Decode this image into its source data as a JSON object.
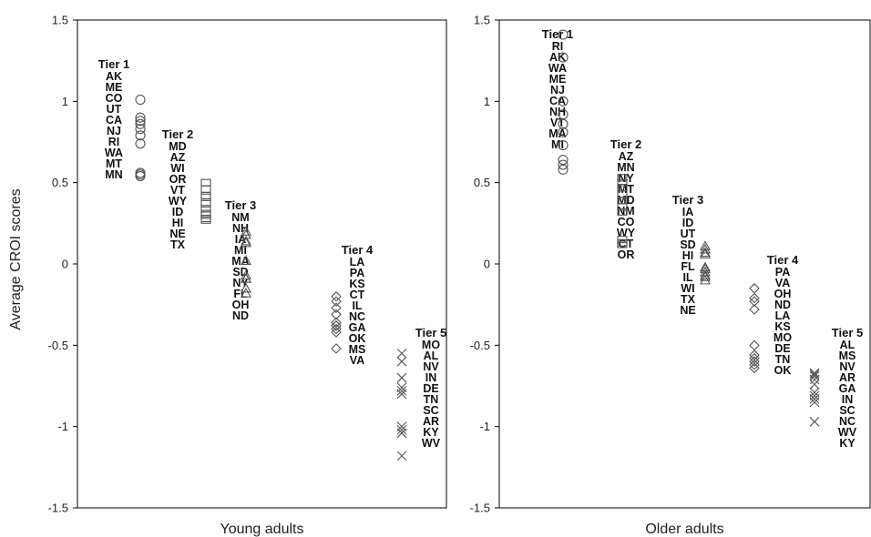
{
  "chart_data": [
    {
      "type": "scatter",
      "xlabel": "Young adults",
      "ylabel": "Average CROI scores",
      "ylim": [
        -1.5,
        1.5
      ],
      "yticks": [
        "1.5",
        "1",
        "0.5",
        "0",
        "-0.5",
        "-1",
        "-1.5"
      ],
      "tiers": [
        {
          "title": "Tier 1",
          "marker": "circle",
          "states": [
            "AK",
            "ME",
            "CO",
            "UT",
            "CA",
            "NJ",
            "RI",
            "WA",
            "MT",
            "MN"
          ],
          "values": [
            1.01,
            0.9,
            0.88,
            0.86,
            0.83,
            0.79,
            0.74,
            0.56,
            0.55,
            0.54
          ]
        },
        {
          "title": "Tier 2",
          "marker": "square",
          "states": [
            "MD",
            "AZ",
            "WI",
            "OR",
            "VT",
            "WY",
            "ID",
            "HI",
            "NE",
            "TX"
          ],
          "values": [
            0.5,
            0.46,
            0.42,
            0.41,
            0.37,
            0.34,
            0.31,
            0.3,
            0.28,
            0.27
          ]
        },
        {
          "title": "Tier 3",
          "marker": "triangle",
          "states": [
            "NM",
            "NH",
            "IA",
            "MI",
            "MA",
            "SD",
            "NY",
            "FL",
            "OH",
            "ND"
          ],
          "values": [
            0.2,
            0.18,
            0.14,
            0.13,
            0.02,
            -0.07,
            -0.09,
            -0.09,
            -0.15,
            -0.18
          ]
        },
        {
          "title": "Tier 4",
          "marker": "diamond",
          "states": [
            "LA",
            "PA",
            "KS",
            "CT",
            "IL",
            "NC",
            "GA",
            "OK",
            "MS",
            "VA"
          ],
          "values": [
            -0.2,
            -0.23,
            -0.27,
            -0.31,
            -0.36,
            -0.38,
            -0.38,
            -0.4,
            -0.42,
            -0.52
          ]
        },
        {
          "title": "Tier 5",
          "marker": "x",
          "states": [
            "MO",
            "AL",
            "NV",
            "IN",
            "DE",
            "TN",
            "SC",
            "AR",
            "KY",
            "WV"
          ],
          "values": [
            -0.55,
            -0.6,
            -0.7,
            -0.76,
            -0.78,
            -0.8,
            -1.0,
            -1.02,
            -1.04,
            -1.18
          ]
        }
      ]
    },
    {
      "type": "scatter",
      "xlabel": "Older adults",
      "ylabel": "",
      "ylim": [
        -1.5,
        1.5
      ],
      "yticks": [
        "1.5",
        "1",
        "0.5",
        "0",
        "-0.5",
        "-1",
        "-1.5"
      ],
      "tiers": [
        {
          "title": "Tier 1",
          "marker": "circle",
          "states": [
            "RI",
            "AK",
            "WA",
            "ME",
            "NJ",
            "CA",
            "NH",
            "VT",
            "MA",
            "MI"
          ],
          "values": [
            1.41,
            1.27,
            1.0,
            0.92,
            0.86,
            0.81,
            0.73,
            0.64,
            0.61,
            0.58
          ]
        },
        {
          "title": "Tier 2",
          "marker": "square",
          "states": [
            "AZ",
            "MN",
            "NY",
            "MT",
            "MD",
            "NM",
            "CO",
            "WY",
            "CT",
            "OR"
          ],
          "values": [
            0.53,
            0.5,
            0.47,
            0.43,
            0.39,
            0.35,
            0.32,
            0.15,
            0.13,
            0.12
          ]
        },
        {
          "title": "Tier 3",
          "marker": "triangle",
          "states": [
            "IA",
            "ID",
            "UT",
            "SD",
            "HI",
            "FL",
            "IL",
            "WI",
            "TX",
            "NE"
          ],
          "values": [
            0.11,
            0.09,
            0.07,
            0.06,
            -0.02,
            -0.03,
            -0.05,
            -0.07,
            -0.08,
            -0.1
          ]
        },
        {
          "title": "Tier 4",
          "marker": "diamond",
          "states": [
            "PA",
            "VA",
            "OH",
            "ND",
            "LA",
            "KS",
            "MO",
            "DE",
            "TN",
            "OK"
          ],
          "values": [
            -0.15,
            -0.21,
            -0.23,
            -0.28,
            -0.5,
            -0.56,
            -0.58,
            -0.6,
            -0.62,
            -0.64
          ]
        },
        {
          "title": "Tier 5",
          "marker": "x",
          "states": [
            "AL",
            "MS",
            "NV",
            "AR",
            "GA",
            "IN",
            "SC",
            "NC",
            "WV",
            "KY"
          ],
          "values": [
            -0.67,
            -0.68,
            -0.69,
            -0.71,
            -0.74,
            -0.79,
            -0.81,
            -0.83,
            -0.85,
            -0.97
          ]
        }
      ]
    }
  ]
}
